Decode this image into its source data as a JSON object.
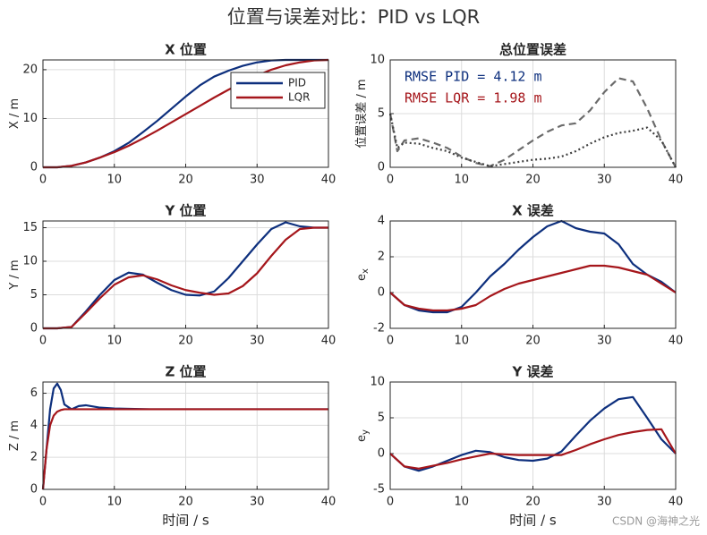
{
  "title": "位置与误差对比：PID vs LQR",
  "watermark": "CSDN @海神之光",
  "chart_data": [
    {
      "type": "line",
      "title": "X 位置",
      "ylabel": "X / m",
      "x": [
        0,
        2,
        4,
        6,
        8,
        10,
        12,
        14,
        16,
        18,
        20,
        22,
        24,
        26,
        28,
        30,
        32,
        34,
        36,
        38,
        40
      ],
      "xlim": [
        0,
        40
      ],
      "xticks": [
        0,
        10,
        20,
        30,
        40
      ],
      "ylim": [
        0,
        22
      ],
      "yticks": [
        0,
        10,
        20
      ],
      "grid": true,
      "legend": "upper right",
      "series": [
        {
          "name": "PID",
          "color": "#0d2f7d",
          "linestyle": "solid",
          "values": [
            0,
            0,
            0.3,
            1.0,
            2.0,
            3.3,
            5.0,
            7.2,
            9.5,
            12,
            14.5,
            16.8,
            18.6,
            19.8,
            20.8,
            21.5,
            21.9,
            22,
            22,
            22,
            22
          ]
        },
        {
          "name": "LQR",
          "color": "#a5161b",
          "linestyle": "solid",
          "values": [
            0,
            0,
            0.3,
            1.0,
            2.0,
            3.1,
            4.4,
            5.9,
            7.5,
            9.2,
            10.9,
            12.6,
            14.3,
            15.9,
            17.4,
            18.8,
            20.0,
            20.9,
            21.5,
            21.9,
            22
          ]
        }
      ]
    },
    {
      "type": "line",
      "title": "总位置误差",
      "ylabel": "位置误差 / m",
      "x": [
        0,
        1,
        2,
        4,
        6,
        8,
        10,
        12,
        14,
        16,
        18,
        20,
        22,
        24,
        26,
        28,
        30,
        32,
        34,
        36,
        38,
        40
      ],
      "xlim": [
        0,
        40
      ],
      "xticks": [
        0,
        10,
        20,
        30,
        40
      ],
      "ylim": [
        0,
        10
      ],
      "yticks": [
        0,
        5,
        10
      ],
      "grid": true,
      "annotations": [
        {
          "text": "RMSE PID = 4.12 m",
          "color": "#0d2f7d"
        },
        {
          "text": "RMSE LQR = 1.98 m",
          "color": "#a5161b"
        }
      ],
      "series": [
        {
          "color": "#6b6b6b",
          "linestyle": "dashed",
          "values": [
            5,
            1.5,
            2.5,
            2.7,
            2.3,
            1.8,
            1.0,
            0.4,
            0.1,
            0.7,
            1.6,
            2.5,
            3.3,
            3.9,
            4.1,
            5.3,
            7.0,
            8.3,
            8.0,
            5.5,
            2.5,
            0
          ]
        },
        {
          "color": "#404040",
          "linestyle": "dotted",
          "values": [
            5,
            1.8,
            2.3,
            2.2,
            1.8,
            1.5,
            0.9,
            0.5,
            0.1,
            0.3,
            0.5,
            0.7,
            0.8,
            1.0,
            1.5,
            2.2,
            2.8,
            3.2,
            3.4,
            3.7,
            2.5,
            0
          ]
        }
      ]
    },
    {
      "type": "line",
      "title": "Y 位置",
      "ylabel": "Y / m",
      "x": [
        0,
        2,
        4,
        6,
        8,
        10,
        12,
        14,
        16,
        18,
        20,
        22,
        24,
        26,
        28,
        30,
        32,
        34,
        36,
        38,
        40
      ],
      "xlim": [
        0,
        40
      ],
      "xticks": [
        0,
        10,
        20,
        30,
        40
      ],
      "ylim": [
        0,
        16
      ],
      "yticks": [
        0,
        5,
        10,
        15
      ],
      "grid": true,
      "series": [
        {
          "name": "PID",
          "color": "#0d2f7d",
          "linestyle": "solid",
          "values": [
            0,
            0,
            0.2,
            2.5,
            5,
            7.2,
            8.3,
            8.0,
            6.8,
            5.7,
            5.0,
            4.9,
            5.5,
            7.5,
            10,
            12.5,
            14.8,
            15.8,
            15.2,
            15,
            15
          ]
        },
        {
          "name": "LQR",
          "color": "#a5161b",
          "linestyle": "solid",
          "values": [
            0,
            0,
            0.2,
            2.3,
            4.5,
            6.5,
            7.6,
            7.9,
            7.3,
            6.4,
            5.7,
            5.3,
            5.0,
            5.2,
            6.3,
            8.2,
            10.8,
            13.2,
            14.8,
            15,
            15
          ]
        }
      ]
    },
    {
      "type": "line",
      "title": "X 误差",
      "ylabel": "e",
      "ylabel_subscript": "x",
      "x": [
        0,
        2,
        4,
        6,
        8,
        10,
        12,
        14,
        16,
        18,
        20,
        22,
        24,
        26,
        28,
        30,
        32,
        34,
        36,
        38,
        40
      ],
      "xlim": [
        0,
        40
      ],
      "xticks": [
        0,
        10,
        20,
        30,
        40
      ],
      "ylim": [
        -2,
        4
      ],
      "yticks": [
        -2,
        0,
        2,
        4
      ],
      "grid": true,
      "series": [
        {
          "name": "PID",
          "color": "#0d2f7d",
          "linestyle": "solid",
          "values": [
            0,
            -0.7,
            -1.0,
            -1.1,
            -1.1,
            -0.8,
            0,
            0.9,
            1.6,
            2.4,
            3.1,
            3.7,
            4.0,
            3.6,
            3.4,
            3.3,
            2.7,
            1.6,
            1.0,
            0.6,
            0
          ]
        },
        {
          "name": "LQR",
          "color": "#a5161b",
          "linestyle": "solid",
          "values": [
            0,
            -0.7,
            -0.9,
            -1.0,
            -1.0,
            -0.9,
            -0.7,
            -0.2,
            0.2,
            0.5,
            0.7,
            0.9,
            1.1,
            1.3,
            1.5,
            1.5,
            1.4,
            1.2,
            1.0,
            0.5,
            0
          ]
        }
      ]
    },
    {
      "type": "line",
      "title": "Z 位置",
      "ylabel": "Z / m",
      "xlabel": "时间 / s",
      "x": [
        0,
        0.5,
        1,
        1.5,
        2,
        2.5,
        3,
        4,
        5,
        6,
        8,
        10,
        15,
        20,
        25,
        30,
        35,
        40
      ],
      "xlim": [
        0,
        40
      ],
      "xticks": [
        0,
        10,
        20,
        30,
        40
      ],
      "ylim": [
        0,
        6.7
      ],
      "yticks": [
        0,
        2,
        4,
        6
      ],
      "grid": true,
      "series": [
        {
          "name": "PID",
          "color": "#0d2f7d",
          "linestyle": "solid",
          "values": [
            0,
            2.5,
            5,
            6.3,
            6.6,
            6.2,
            5.3,
            5.0,
            5.2,
            5.25,
            5.1,
            5.05,
            5,
            5,
            5,
            5,
            5,
            5
          ]
        },
        {
          "name": "LQR",
          "color": "#a5161b",
          "linestyle": "solid",
          "values": [
            0,
            2.5,
            4.0,
            4.6,
            4.85,
            4.95,
            5,
            5,
            5,
            5,
            5,
            5,
            5,
            5,
            5,
            5,
            5,
            5
          ]
        }
      ]
    },
    {
      "type": "line",
      "title": "Y 误差",
      "ylabel": "e",
      "ylabel_subscript": "y",
      "xlabel": "时间 / s",
      "x": [
        0,
        2,
        4,
        6,
        8,
        10,
        12,
        14,
        16,
        18,
        20,
        22,
        24,
        26,
        28,
        30,
        32,
        34,
        36,
        38,
        40
      ],
      "xlim": [
        0,
        40
      ],
      "xticks": [
        0,
        10,
        20,
        30,
        40
      ],
      "ylim": [
        -5,
        10
      ],
      "yticks": [
        -5,
        0,
        5,
        10
      ],
      "grid": true,
      "series": [
        {
          "name": "PID",
          "color": "#0d2f7d",
          "linestyle": "solid",
          "values": [
            0,
            -1.8,
            -2.4,
            -1.8,
            -1.0,
            -0.2,
            0.4,
            0.2,
            -0.5,
            -0.9,
            -1.0,
            -0.7,
            0.3,
            2.5,
            4.6,
            6.3,
            7.6,
            7.9,
            5.0,
            2.0,
            0
          ]
        },
        {
          "name": "LQR",
          "color": "#a5161b",
          "linestyle": "solid",
          "values": [
            0,
            -1.8,
            -2.1,
            -1.7,
            -1.3,
            -0.8,
            -0.4,
            0,
            -0.1,
            -0.2,
            -0.2,
            -0.2,
            -0.2,
            0.5,
            1.3,
            2.0,
            2.6,
            3.0,
            3.3,
            3.4,
            0
          ]
        }
      ]
    }
  ]
}
